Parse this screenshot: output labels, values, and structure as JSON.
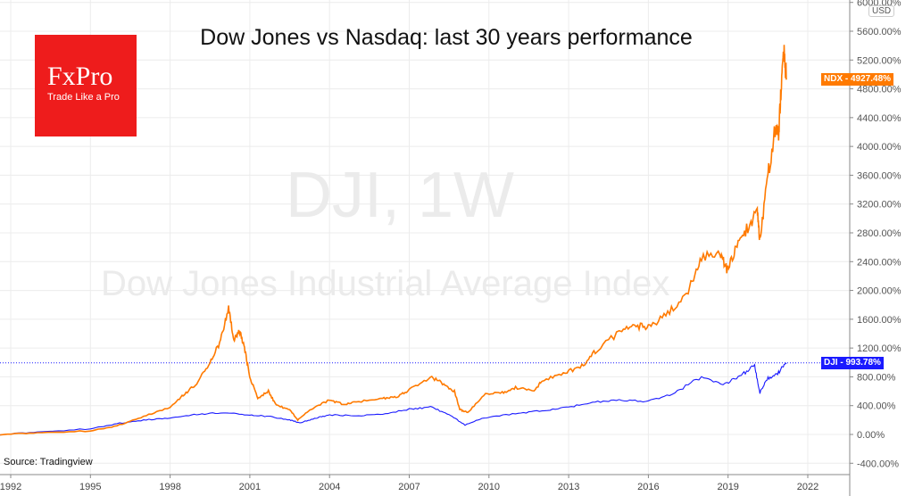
{
  "logo": {
    "brand": "FxPro",
    "slogan": "Trade Like a Pro",
    "color": "#ee1c1c"
  },
  "watermark": {
    "symbol": "DJI, 1W",
    "name": "Dow Jones Industrial Average Index"
  },
  "source": "Source: Tradingview",
  "currency": "USD",
  "chart_data": {
    "type": "line",
    "title": "Dow Jones vs Nasdaq: last 30 years performance",
    "x_ticks": [
      "1992",
      "1995",
      "1998",
      "2001",
      "2004",
      "2007",
      "2010",
      "2013",
      "2016",
      "2019",
      "2022"
    ],
    "y_ticks": [
      "-400.00%",
      "0.00%",
      "400.00%",
      "800.00%",
      "1200.00%",
      "1600.00%",
      "2000.00%",
      "2400.00%",
      "2800.00%",
      "3200.00%",
      "3600.00%",
      "4000.00%",
      "4400.00%",
      "4800.00%",
      "5200.00%",
      "5600.00%",
      "6000.00%"
    ],
    "ylim": [
      -500,
      6000
    ],
    "xlim": [
      1991.6,
      2023.6
    ],
    "grid": true,
    "series": [
      {
        "name": "NDX",
        "color": "#ff7a00",
        "last_label": "4927.48%",
        "x": [
          1991.6,
          1993,
          1995,
          1996,
          1997,
          1998,
          1998.5,
          1999,
          1999.5,
          1999.9,
          2000.2,
          2000.4,
          2000.6,
          2000.8,
          2001,
          2001.3,
          2001.7,
          2002,
          2002.5,
          2002.8,
          2003.3,
          2004,
          2004.5,
          2005,
          2006,
          2006.5,
          2007,
          2007.8,
          2008.3,
          2008.7,
          2008.9,
          2009.2,
          2009.8,
          2010.5,
          2011,
          2011.7,
          2012,
          2012.8,
          2013.5,
          2014,
          2015,
          2015.6,
          2016.1,
          2016.8,
          2017.5,
          2018,
          2018.7,
          2018.95,
          2019.3,
          2019.7,
          2020.1,
          2020.2,
          2020.5,
          2020.8,
          2020.9,
          2021,
          2021.1,
          2021.2
        ],
        "y": [
          0,
          20,
          50,
          120,
          250,
          380,
          550,
          700,
          1000,
          1300,
          1750,
          1300,
          1450,
          1200,
          800,
          500,
          600,
          400,
          350,
          200,
          350,
          480,
          420,
          450,
          500,
          520,
          620,
          800,
          700,
          600,
          350,
          300,
          550,
          580,
          650,
          600,
          750,
          850,
          950,
          1150,
          1450,
          1500,
          1500,
          1700,
          2000,
          2450,
          2500,
          2300,
          2600,
          2850,
          3100,
          2700,
          3600,
          4300,
          4200,
          4800,
          5350,
          4927
        ]
      },
      {
        "name": "DJI",
        "color": "#1a1aff",
        "last_label": "993.78%",
        "x": [
          1991.6,
          1993,
          1995,
          1996,
          1997,
          1998,
          1999,
          2000,
          2001,
          2001.7,
          2002.5,
          2002.9,
          2003.5,
          2004,
          2005,
          2006,
          2007,
          2007.8,
          2008.5,
          2009.1,
          2009.8,
          2011,
          2012,
          2013,
          2014,
          2015,
          2016,
          2017,
          2018,
          2018.9,
          2019.5,
          2020,
          2020.2,
          2020.5,
          2020.9,
          2021.2
        ],
        "y": [
          0,
          30,
          80,
          150,
          200,
          230,
          280,
          300,
          270,
          250,
          200,
          160,
          230,
          270,
          260,
          280,
          350,
          380,
          280,
          130,
          230,
          290,
          330,
          380,
          450,
          480,
          460,
          580,
          800,
          700,
          830,
          950,
          580,
          780,
          860,
          994
        ]
      }
    ]
  }
}
